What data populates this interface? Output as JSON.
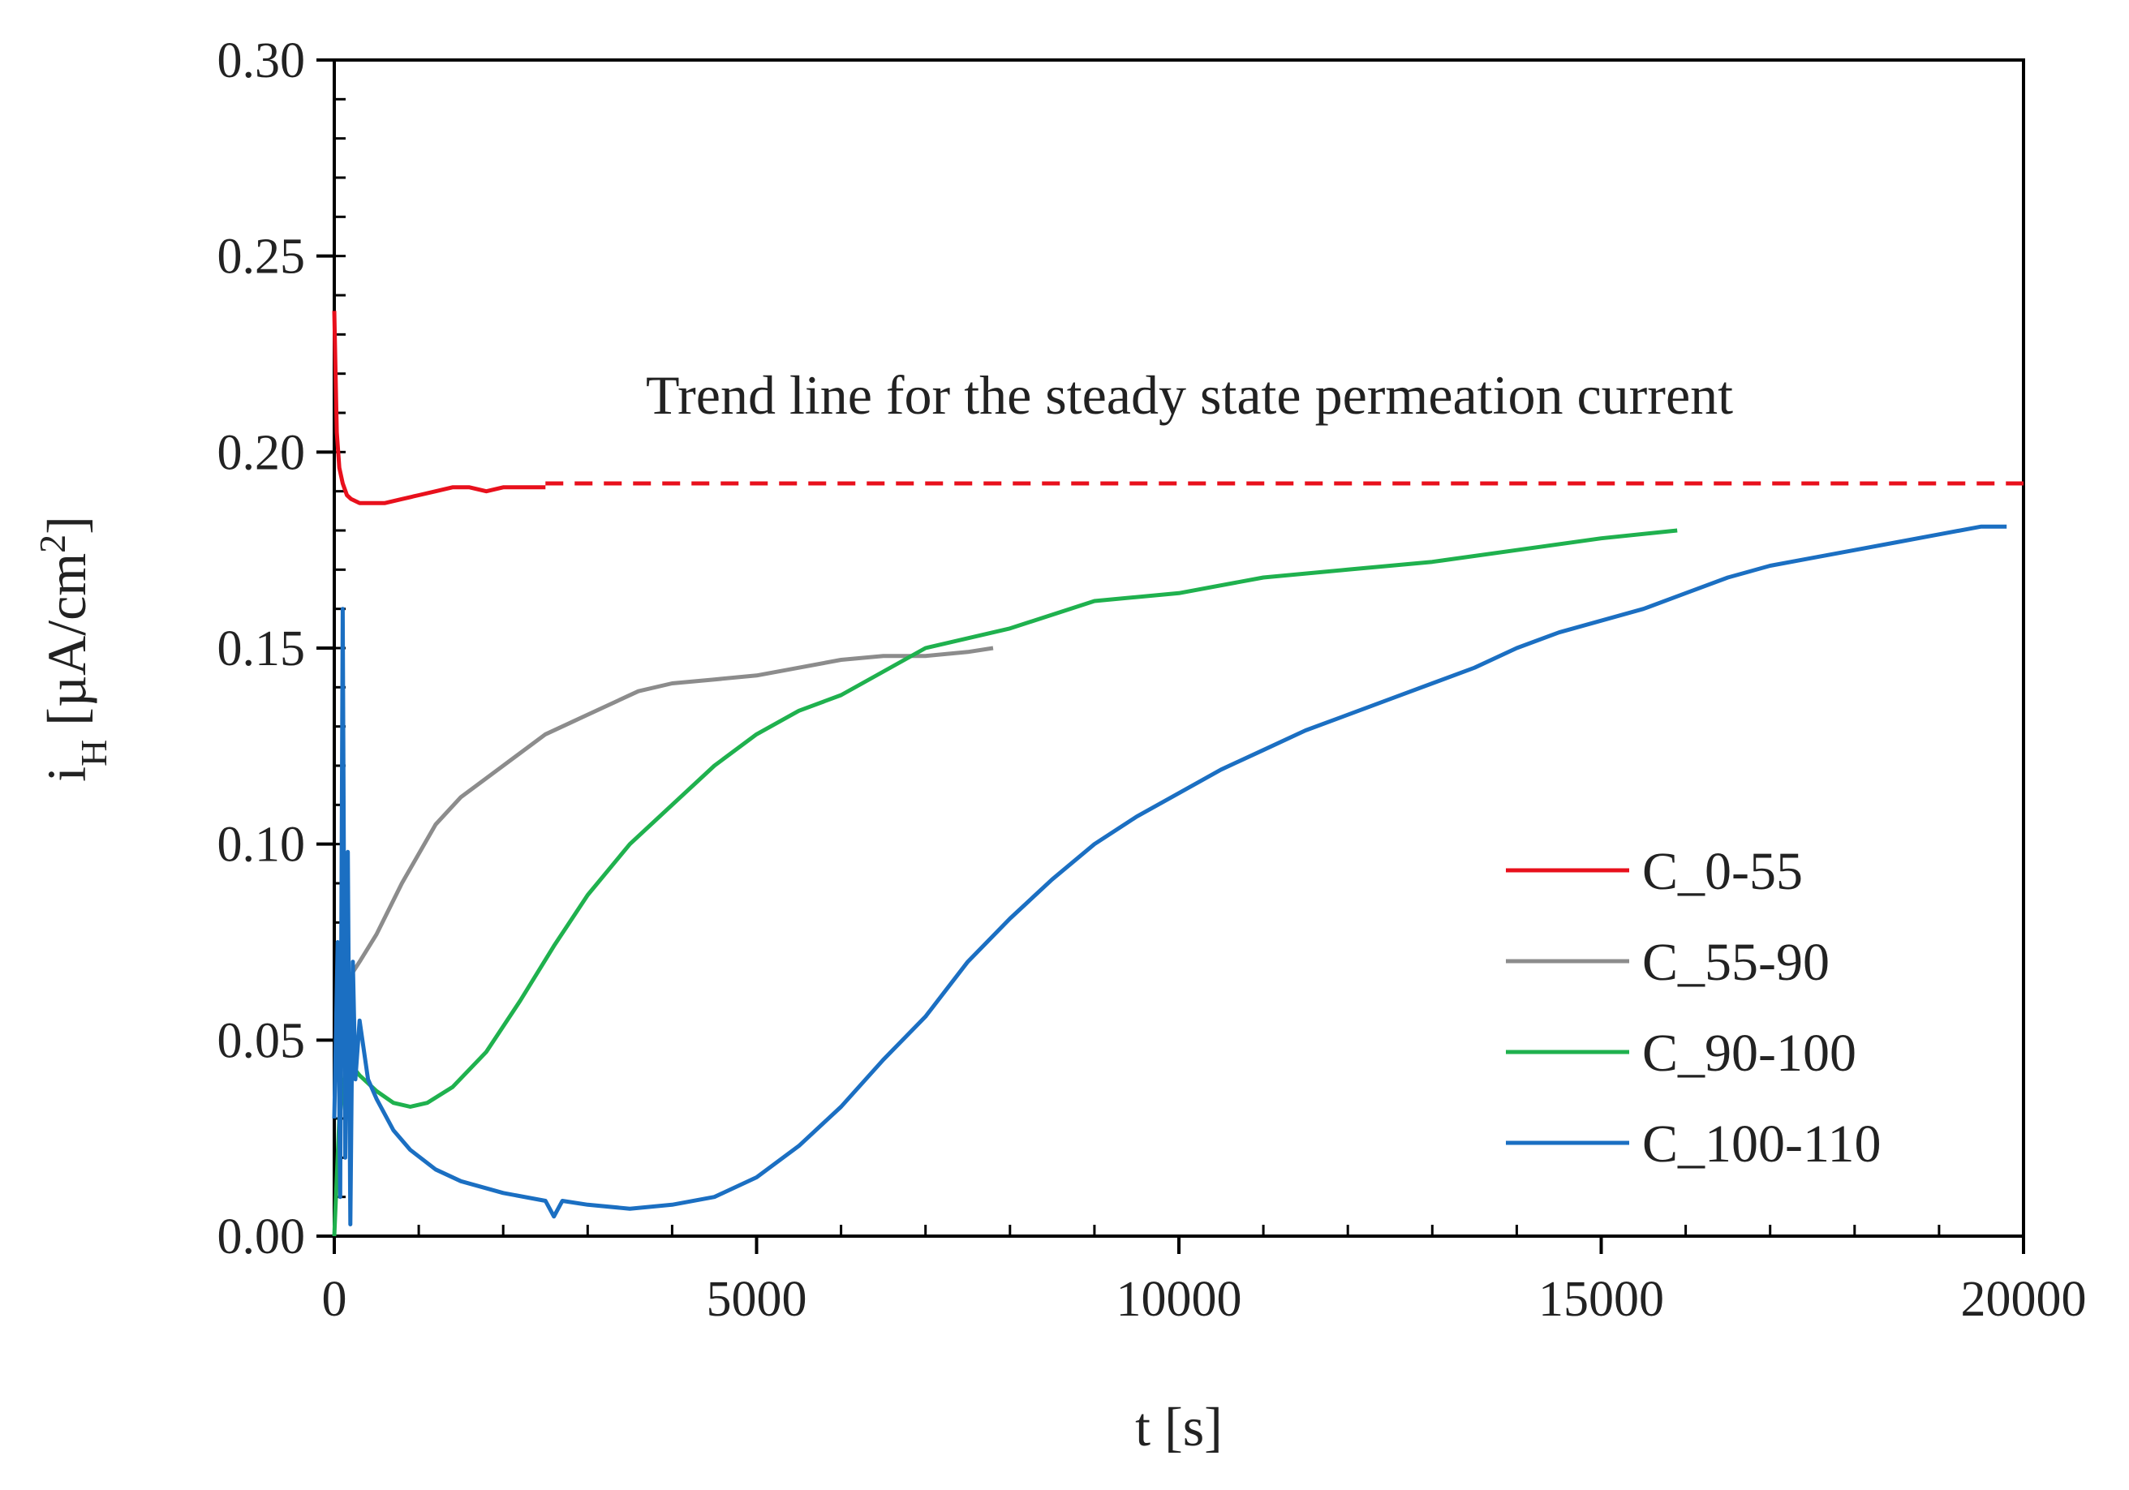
{
  "chart_data": {
    "type": "line",
    "title": "",
    "xlabel": "t [s]",
    "ylabel_main": "i",
    "ylabel_sub": "H",
    "ylabel_rest": " [µA/cm",
    "ylabel_sup": "2",
    "ylabel_close": "]",
    "xlim": [
      0,
      20000
    ],
    "ylim": [
      0,
      0.3
    ],
    "xticks": [
      0,
      5000,
      10000,
      15000,
      20000
    ],
    "xtick_labels": [
      "0",
      "5000",
      "10000",
      "15000",
      "20000"
    ],
    "yticks": [
      0,
      0.05,
      0.1,
      0.15,
      0.2,
      0.25,
      0.3
    ],
    "ytick_labels": [
      "0.00",
      "0.05",
      "0.10",
      "0.15",
      "0.20",
      "0.25",
      "0.30"
    ],
    "x_minor_step": 1000,
    "y_minor_step": 0.01,
    "legend_position": "bottom-right",
    "annotation": "Trend line for the steady state permeation current",
    "trend_line": {
      "y": 0.192,
      "x_start": 2500,
      "x_end": 20000,
      "color": "#e8101c"
    },
    "series": [
      {
        "name": "C_0-55",
        "color": "#e8101c",
        "x": [
          0,
          30,
          60,
          100,
          150,
          200,
          300,
          400,
          600,
          800,
          1000,
          1200,
          1400,
          1600,
          1800,
          2000,
          2200,
          2500
        ],
        "y": [
          0.236,
          0.205,
          0.196,
          0.192,
          0.189,
          0.188,
          0.187,
          0.187,
          0.187,
          0.188,
          0.189,
          0.19,
          0.191,
          0.191,
          0.19,
          0.191,
          0.191,
          0.191
        ]
      },
      {
        "name": "C_55-90",
        "color": "#8c8c8c",
        "x": [
          150,
          300,
          500,
          800,
          1200,
          1500,
          2000,
          2500,
          2800,
          3200,
          3600,
          4000,
          4500,
          5000,
          5500,
          6000,
          6500,
          7000,
          7500,
          7800
        ],
        "y": [
          0.065,
          0.07,
          0.077,
          0.09,
          0.105,
          0.112,
          0.12,
          0.128,
          0.131,
          0.135,
          0.139,
          0.141,
          0.142,
          0.143,
          0.145,
          0.147,
          0.148,
          0.148,
          0.149,
          0.15
        ]
      },
      {
        "name": "C_90-100",
        "color": "#1fb14e",
        "x": [
          0,
          60,
          150,
          300,
          500,
          700,
          900,
          1100,
          1400,
          1800,
          2200,
          2600,
          3000,
          3500,
          4000,
          4500,
          5000,
          5500,
          6000,
          6500,
          7000,
          8000,
          9000,
          10000,
          11000,
          12000,
          13000,
          14000,
          15000,
          15900
        ],
        "y": [
          0.0,
          0.03,
          0.045,
          0.041,
          0.037,
          0.034,
          0.033,
          0.034,
          0.038,
          0.047,
          0.06,
          0.074,
          0.087,
          0.1,
          0.11,
          0.12,
          0.128,
          0.134,
          0.138,
          0.144,
          0.15,
          0.155,
          0.162,
          0.164,
          0.168,
          0.17,
          0.172,
          0.175,
          0.178,
          0.18
        ]
      },
      {
        "name": "C_100-110",
        "color": "#1b6fc2",
        "x": [
          0,
          40,
          70,
          100,
          130,
          160,
          190,
          220,
          250,
          300,
          400,
          500,
          700,
          900,
          1200,
          1500,
          2000,
          2500,
          2600,
          2700,
          3000,
          3500,
          4000,
          4500,
          5000,
          5500,
          6000,
          6500,
          7000,
          7500,
          8000,
          8500,
          9000,
          9500,
          10000,
          10500,
          11000,
          11500,
          12000,
          12500,
          13000,
          13500,
          14000,
          14500,
          15000,
          15500,
          16000,
          16500,
          17000,
          17500,
          18000,
          18500,
          19000,
          19500,
          19800
        ],
        "y": [
          0.03,
          0.075,
          0.01,
          0.16,
          0.02,
          0.098,
          0.003,
          0.07,
          0.04,
          0.055,
          0.04,
          0.035,
          0.027,
          0.022,
          0.017,
          0.014,
          0.011,
          0.009,
          0.005,
          0.009,
          0.008,
          0.007,
          0.008,
          0.01,
          0.015,
          0.023,
          0.033,
          0.045,
          0.056,
          0.07,
          0.081,
          0.091,
          0.1,
          0.107,
          0.113,
          0.119,
          0.124,
          0.129,
          0.133,
          0.137,
          0.141,
          0.145,
          0.15,
          0.154,
          0.157,
          0.16,
          0.164,
          0.168,
          0.171,
          0.173,
          0.175,
          0.177,
          0.179,
          0.181,
          0.181
        ]
      }
    ]
  }
}
